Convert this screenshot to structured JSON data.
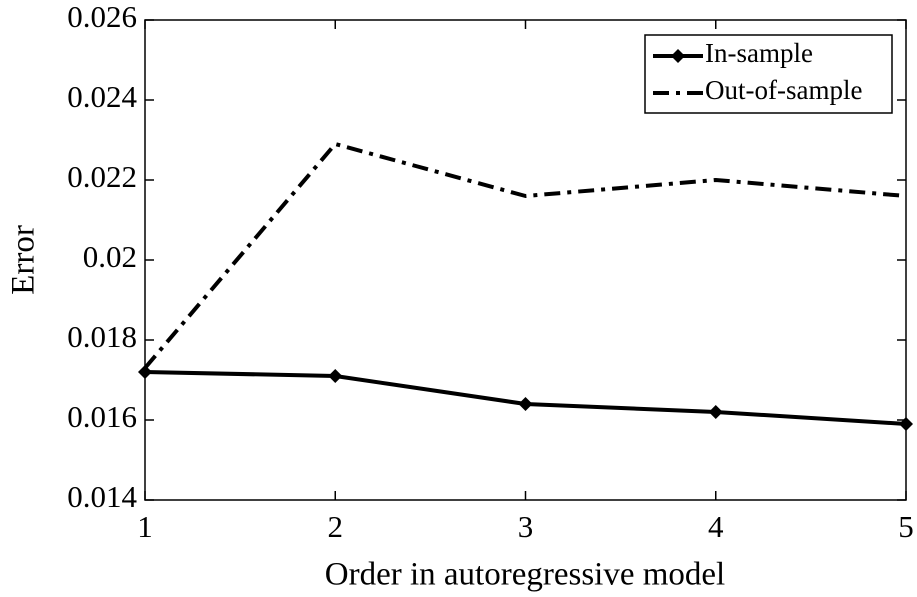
{
  "chart_data": {
    "type": "line",
    "x_label": "Order in autoregressive model",
    "y_label": "Error",
    "x": [
      1,
      2,
      3,
      4,
      5
    ],
    "series": [
      {
        "name": "In-sample",
        "color": "#000000",
        "line_style": "solid",
        "marker": "diamond",
        "values": [
          0.0172,
          0.0171,
          0.0164,
          0.0162,
          0.0159
        ]
      },
      {
        "name": "Out-of-sample",
        "color": "#000000",
        "line_style": "dashdot",
        "marker": "none",
        "values": [
          0.0173,
          0.0229,
          0.0216,
          0.022,
          0.0216
        ]
      }
    ],
    "xlim": [
      1,
      5
    ],
    "xticks": [
      1,
      2,
      3,
      4,
      5
    ],
    "ylim": [
      0.014,
      0.026
    ],
    "yticks": [
      0.014,
      0.016,
      0.018,
      0.02,
      0.022,
      0.024,
      0.026
    ],
    "legend": "upper right",
    "grid": false
  }
}
